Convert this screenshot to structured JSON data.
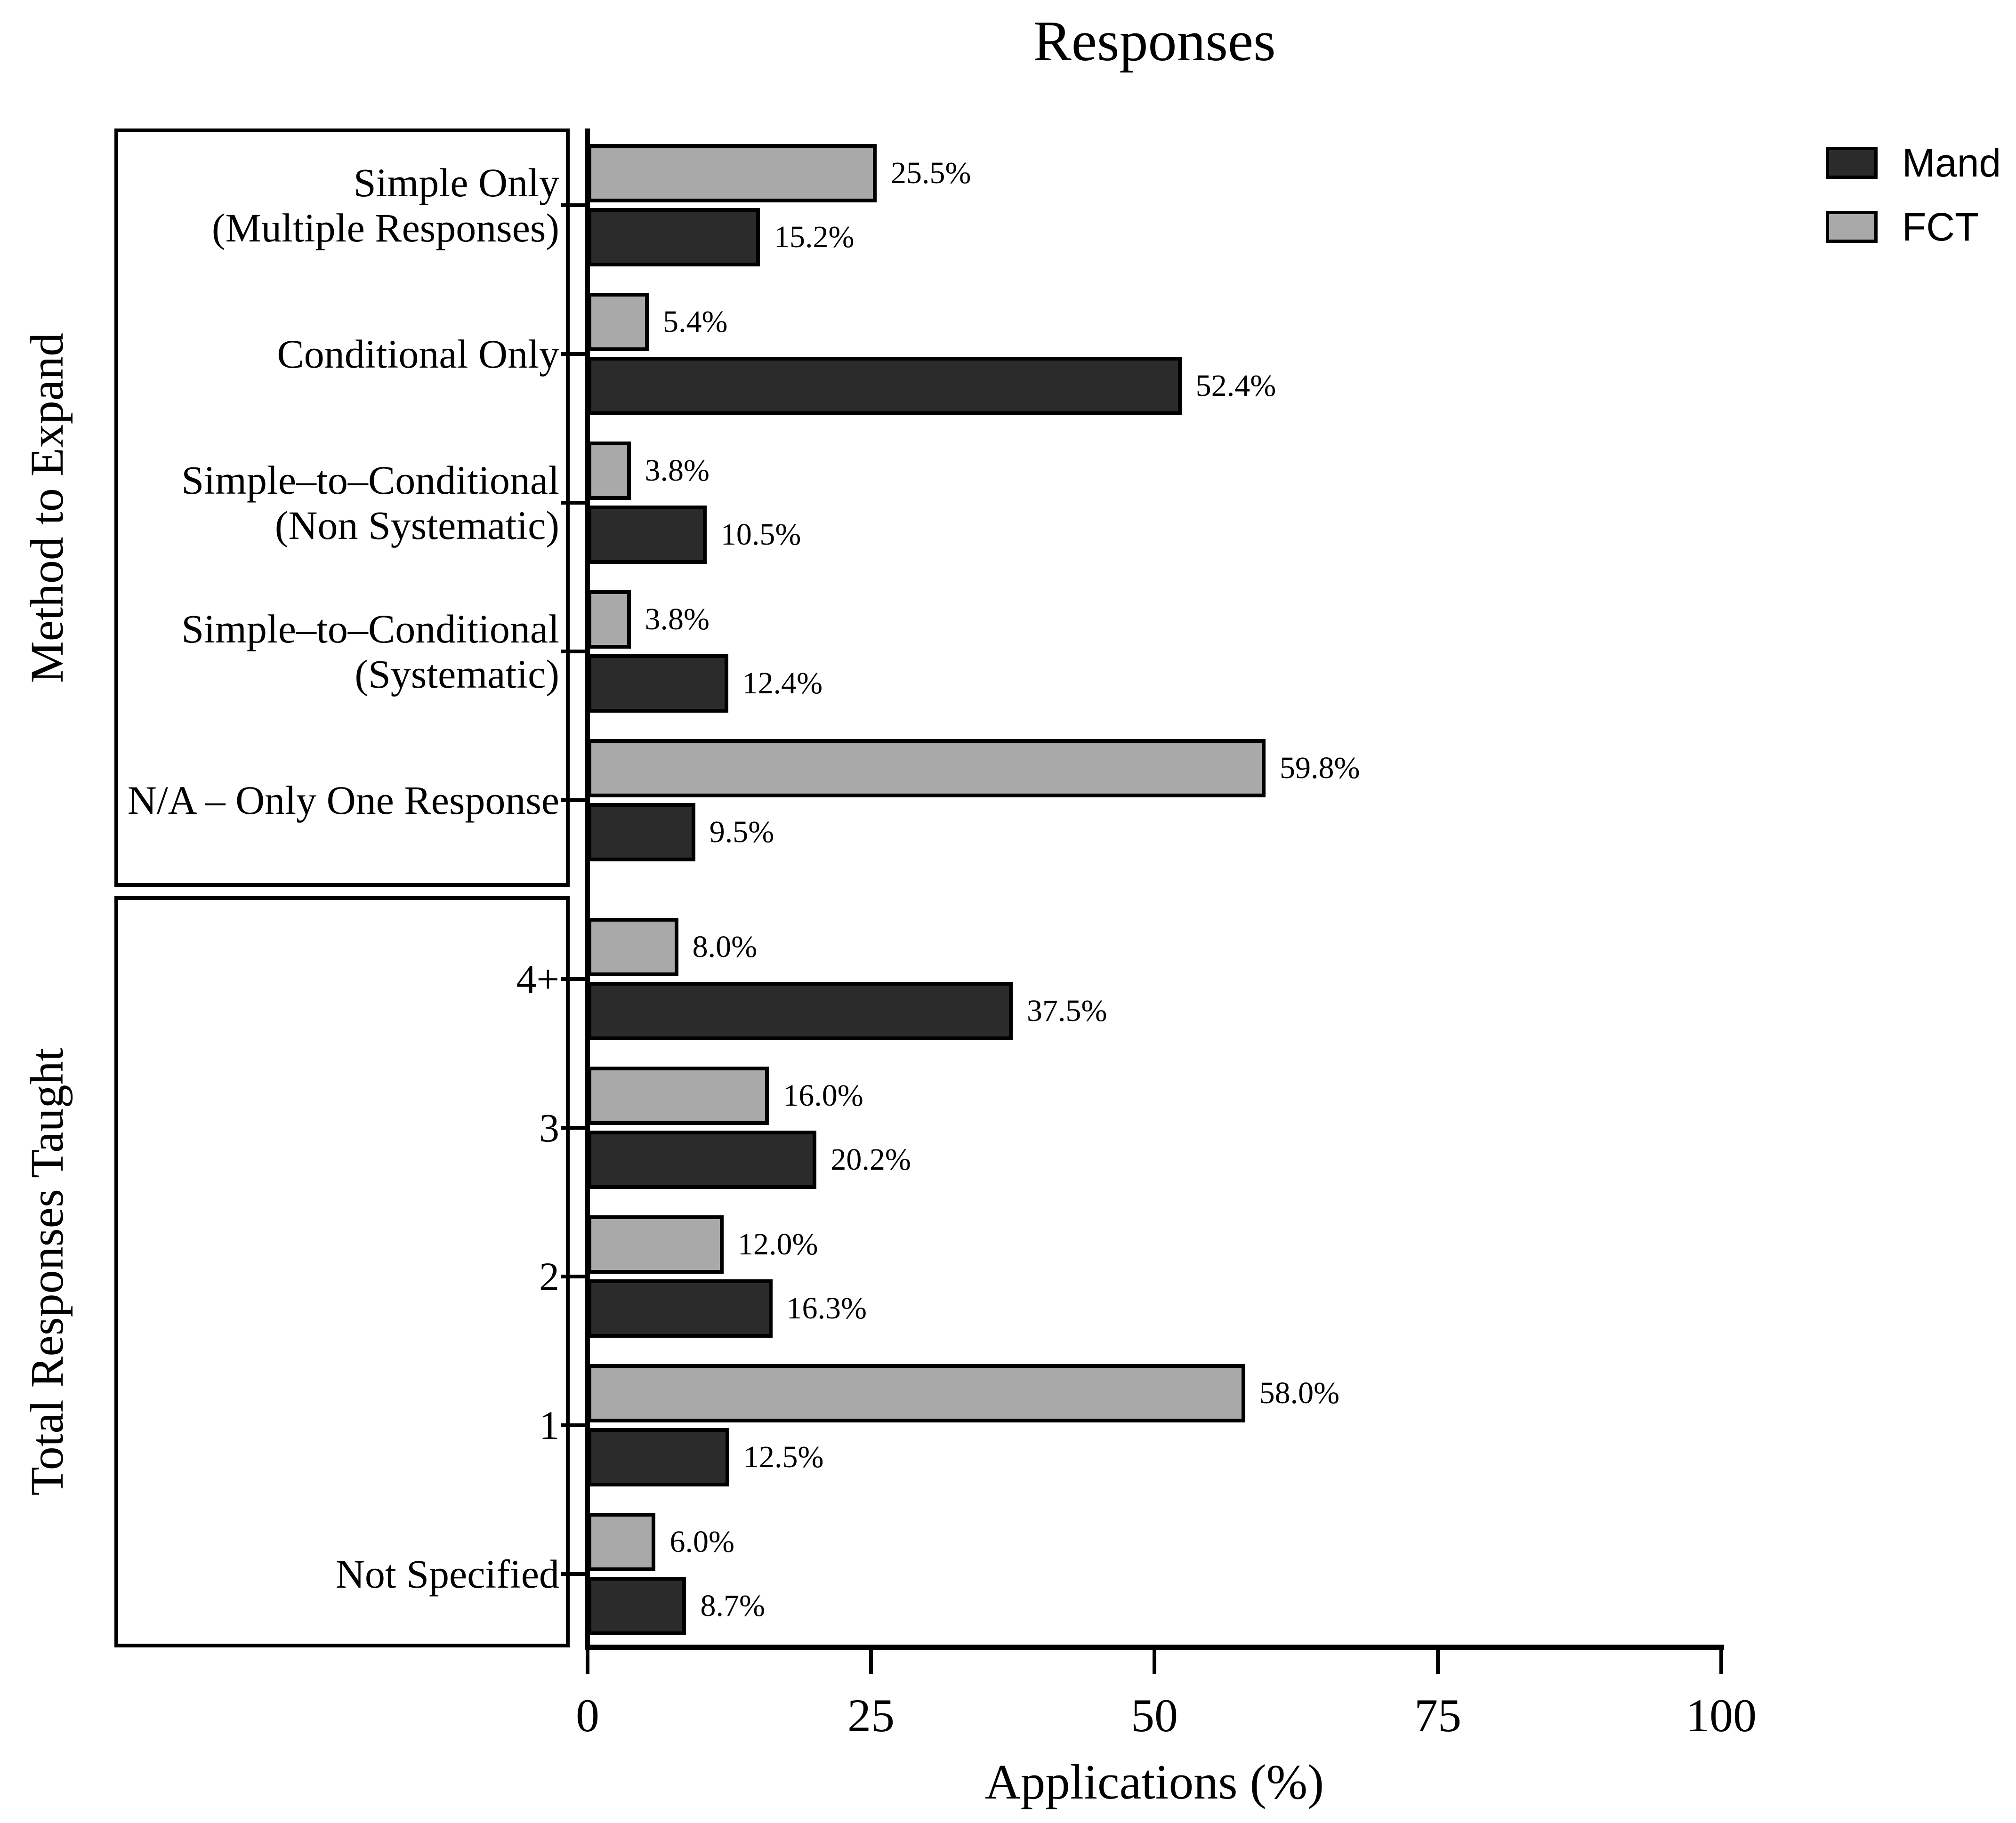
{
  "chart_data": {
    "type": "bar",
    "orientation": "horizontal",
    "title": "Responses",
    "xlabel": "Applications (%)",
    "ylabel": "",
    "xlim": [
      0,
      100
    ],
    "x_ticks": [
      0,
      25,
      50,
      75,
      100
    ],
    "grid": false,
    "legend_position": "top-right",
    "series": [
      {
        "name": "Mand",
        "color": "#2b2b2b"
      },
      {
        "name": "FCT",
        "color": "#a9a9a9"
      }
    ],
    "bar_order_top_to_bottom": [
      "FCT",
      "Mand"
    ],
    "value_label_suffix": "%",
    "groups": [
      {
        "label": "Method to Expand",
        "categories": [
          {
            "label_lines": [
              "Simple Only",
              "(Multiple Responses)"
            ],
            "FCT": 25.5,
            "Mand": 15.2
          },
          {
            "label_lines": [
              "Conditional Only"
            ],
            "FCT": 5.4,
            "Mand": 52.4
          },
          {
            "label_lines": [
              "Simple–to–Conditional",
              "(Non Systematic)"
            ],
            "FCT": 3.8,
            "Mand": 10.5
          },
          {
            "label_lines": [
              "Simple–to–Conditional",
              "(Systematic)"
            ],
            "FCT": 3.8,
            "Mand": 12.4
          },
          {
            "label_lines": [
              "N/A – Only One Response"
            ],
            "FCT": 59.8,
            "Mand": 9.5
          }
        ]
      },
      {
        "label": "Total Responses Taught",
        "categories": [
          {
            "label_lines": [
              "4+"
            ],
            "FCT": 8.0,
            "Mand": 37.5
          },
          {
            "label_lines": [
              "3"
            ],
            "FCT": 16.0,
            "Mand": 20.2
          },
          {
            "label_lines": [
              "2"
            ],
            "FCT": 12.0,
            "Mand": 16.3
          },
          {
            "label_lines": [
              "1"
            ],
            "FCT": 58.0,
            "Mand": 12.5
          },
          {
            "label_lines": [
              "Not Specified"
            ],
            "FCT": 6.0,
            "Mand": 8.7
          }
        ]
      }
    ]
  },
  "legend": {
    "entries": [
      {
        "label": "Mand",
        "color": "#2b2b2b"
      },
      {
        "label": "FCT",
        "color": "#a9a9a9"
      }
    ]
  }
}
